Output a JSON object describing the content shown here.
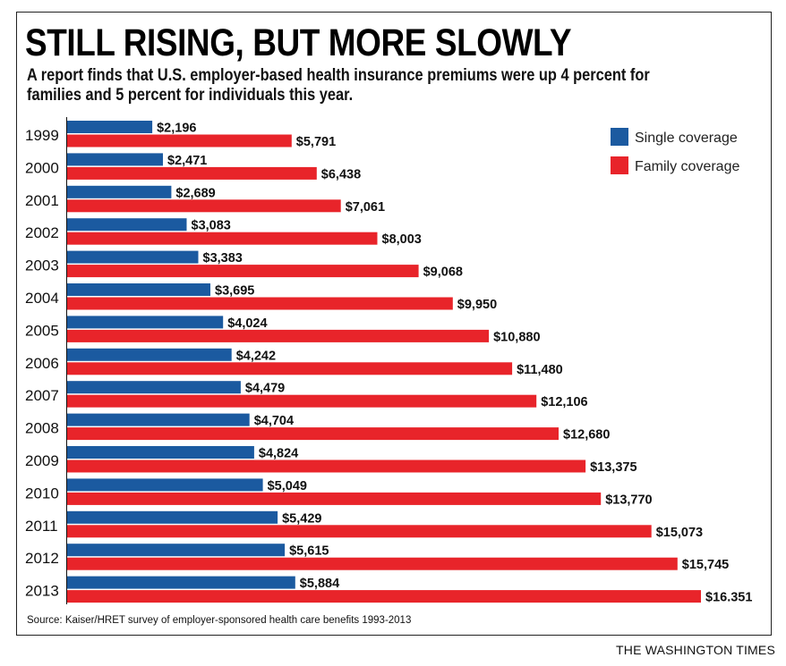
{
  "header": {
    "title": "STILL RISING, BUT MORE SLOWLY",
    "subtitle": "A report finds that U.S. employer-based health insurance premiums were up 4 percent for families and 5 percent for individuals this year."
  },
  "footer": {
    "source": "Source:  Kaiser/HRET survey of employer-sponsored health care benefits 1993-2013",
    "credit": "THE WASHINGTON TIMES"
  },
  "colors": {
    "single": "#1b5aa0",
    "family": "#e8242a"
  },
  "chart_data": {
    "type": "bar",
    "orientation": "horizontal",
    "categories": [
      "1999",
      "2000",
      "2001",
      "2002",
      "2003",
      "2004",
      "2005",
      "2006",
      "2007",
      "2008",
      "2009",
      "2010",
      "2011",
      "2012",
      "2013"
    ],
    "series": [
      {
        "name": "Single coverage",
        "values": [
          2196,
          2471,
          2689,
          3083,
          3383,
          3695,
          4024,
          4242,
          4479,
          4704,
          4824,
          5049,
          5429,
          5615,
          5884
        ],
        "labels": [
          "$2,196",
          "$2,471",
          "$2,689",
          "$3,083",
          "$3,383",
          "$3,695",
          "$4,024",
          "$4,242",
          "$4,479",
          "$4,704",
          "$4,824",
          "$5,049",
          "$5,429",
          "$5,615",
          "$5,884"
        ]
      },
      {
        "name": "Family coverage",
        "values": [
          5791,
          6438,
          7061,
          8003,
          9068,
          9950,
          10880,
          11480,
          12106,
          12680,
          13375,
          13770,
          15073,
          15745,
          16351
        ],
        "labels": [
          "$5,791",
          "$6,438",
          "$7,061",
          "$8,003",
          "$9,068",
          "$9,950",
          "$10,880",
          "$11,480",
          "$12,106",
          "$12,680",
          "$13,375",
          "$13,770",
          "$15,073",
          "$15,745",
          "$16.351"
        ]
      }
    ],
    "xlim": [
      0,
      16351
    ],
    "grid": false,
    "legend_position": "top-right"
  }
}
